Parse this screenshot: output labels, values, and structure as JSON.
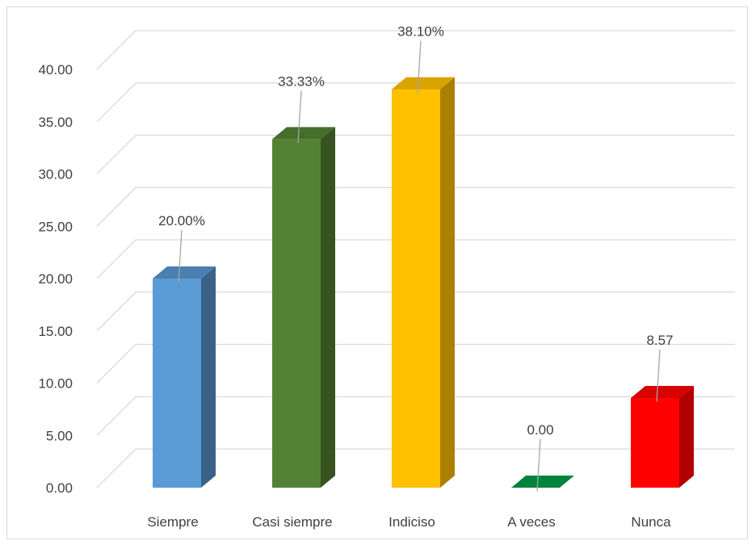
{
  "chart_data": {
    "type": "bar",
    "style": "3d-column",
    "title": "",
    "xlabel": "",
    "ylabel": "",
    "ylim": [
      0,
      40
    ],
    "ytick_step": 5,
    "ytick_labels": [
      "0.00",
      "5.00",
      "10.00",
      "15.00",
      "20.00",
      "25.00",
      "30.00",
      "35.00",
      "40.00"
    ],
    "grid": true,
    "legend": "none",
    "categories": [
      "Siempre",
      "Casi siempre",
      "Indiciso",
      "A veces",
      "Nunca"
    ],
    "values": [
      20.0,
      33.33,
      38.1,
      0.0,
      8.57
    ],
    "data_labels": [
      "20.00%",
      "33.33%",
      "38.10%",
      "0.00",
      "8.57"
    ],
    "colors": [
      {
        "front": "#5b9bd5",
        "side": "#3a6287",
        "top": "#4a7fb0"
      },
      {
        "front": "#548235",
        "side": "#37531f",
        "top": "#466e2b"
      },
      {
        "front": "#ffc000",
        "side": "#ab8000",
        "top": "#d9a300"
      },
      {
        "front": "#00843d",
        "side": "#005a29",
        "top": "#00843d"
      },
      {
        "front": "#ff0000",
        "side": "#b30000",
        "top": "#d80000"
      }
    ]
  }
}
